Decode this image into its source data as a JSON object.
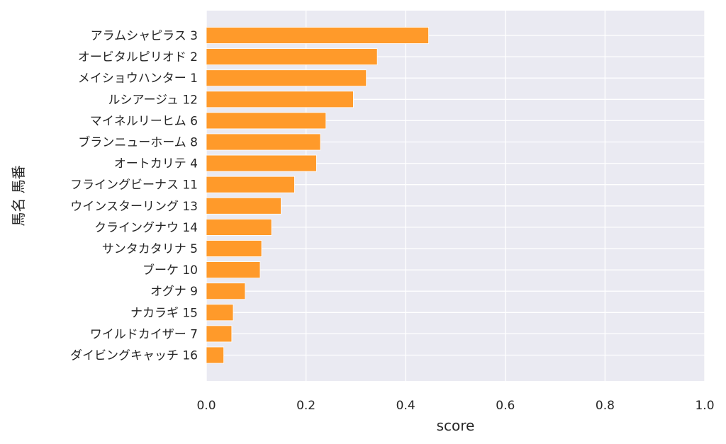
{
  "chart_data": {
    "type": "bar",
    "orientation": "horizontal",
    "categories": [
      "アラムシャピラス 3",
      "オービタルピリオド 2",
      "メイショウハンター 1",
      "ルシアージュ 12",
      "マイネルリーヒム 6",
      "ブランニューホーム 8",
      "オートカリテ 4",
      "フライングビーナス 11",
      "ウインスターリング 13",
      "クライングナウ 14",
      "サンタカタリナ 5",
      "ブーケ 10",
      "オグナ 9",
      "ナカラギ 15",
      "ワイルドカイザー 7",
      "ダイビングキャッチ 16"
    ],
    "values": [
      0.446,
      0.343,
      0.321,
      0.295,
      0.24,
      0.229,
      0.221,
      0.177,
      0.15,
      0.131,
      0.111,
      0.108,
      0.078,
      0.054,
      0.051,
      0.035
    ],
    "xlabel": "score",
    "ylabel": "馬名 馬番",
    "xlim": [
      0.0,
      1.0
    ],
    "xticks": [
      "0.0",
      "0.2",
      "0.4",
      "0.6",
      "0.8",
      "1.0"
    ],
    "grid": true,
    "colors": {
      "bar": "#ff9a2a",
      "plot_background": "#eaeaf2",
      "grid": "#ffffff",
      "text": "#262626"
    }
  }
}
